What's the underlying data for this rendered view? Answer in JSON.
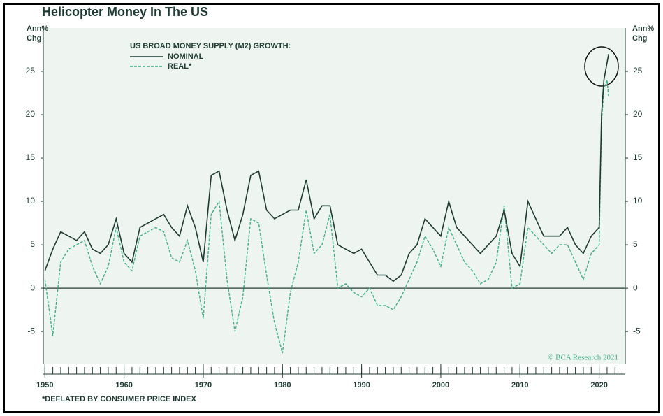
{
  "chart_data": {
    "type": "line",
    "title": "Helicopter Money In The US",
    "ylabel": [
      "Ann%",
      "Chg"
    ],
    "legend_title": "US BROAD MONEY SUPPLY (M2) GROWTH:",
    "footnote": "*DEFLATED BY CONSUMER PRICE INDEX",
    "source": "© BCA Research 2021",
    "legend": "upper left",
    "x": [
      1950,
      1951,
      1952,
      1953,
      1954,
      1955,
      1956,
      1957,
      1958,
      1959,
      1960,
      1961,
      1962,
      1963,
      1964,
      1965,
      1966,
      1967,
      1968,
      1969,
      1970,
      1971,
      1972,
      1973,
      1974,
      1975,
      1976,
      1977,
      1978,
      1979,
      1980,
      1981,
      1982,
      1983,
      1984,
      1985,
      1986,
      1987,
      1988,
      1989,
      1990,
      1991,
      1992,
      1993,
      1994,
      1995,
      1996,
      1997,
      1998,
      1999,
      2000,
      2001,
      2002,
      2003,
      2004,
      2005,
      2006,
      2007,
      2008,
      2009,
      2010,
      2011,
      2012,
      2013,
      2014,
      2015,
      2016,
      2017,
      2018,
      2019,
      2020,
      2020.3,
      2020.6,
      2021,
      2021.2
    ],
    "series": [
      {
        "name": "NOMINAL",
        "color": "#1f3a33",
        "dash": false,
        "values": [
          2,
          4.5,
          6.5,
          6,
          5.5,
          6.5,
          4.5,
          4,
          5,
          8,
          4,
          3,
          7,
          7.5,
          8,
          8.5,
          7,
          6,
          9.5,
          7,
          3,
          13,
          13.5,
          9,
          5.5,
          8.5,
          13,
          13.5,
          9,
          8,
          8.5,
          9,
          9,
          12.5,
          8,
          9.5,
          9.5,
          5,
          4.5,
          4,
          4.5,
          3,
          1.5,
          1.5,
          0.8,
          1.5,
          4,
          5,
          8,
          7,
          6,
          10,
          7,
          6,
          5,
          4,
          5,
          6,
          9,
          4,
          2.5,
          10,
          8,
          6,
          6,
          6,
          7,
          5,
          4,
          6,
          7,
          20,
          24,
          26,
          27
        ]
      },
      {
        "name": "REAL*",
        "color": "#3fae8a",
        "dash": true,
        "values": [
          1,
          -5.5,
          3,
          4.5,
          5,
          5.5,
          2.5,
          0.5,
          2.5,
          7,
          3,
          2,
          6,
          6.5,
          7,
          6.5,
          3.5,
          3,
          5.5,
          2,
          -3.5,
          8.5,
          10,
          1,
          -5,
          -1,
          8,
          7.5,
          1.5,
          -4,
          -7.5,
          -0.5,
          3,
          9,
          4,
          5,
          8.5,
          0,
          0.5,
          -0.5,
          -1,
          0,
          -2,
          -2,
          -2.5,
          -1,
          1,
          3,
          6,
          4.5,
          2.5,
          7,
          5,
          3,
          2,
          0.5,
          1,
          3,
          9.5,
          0,
          0.5,
          7,
          6,
          5,
          4,
          5,
          5,
          3,
          1,
          4,
          5,
          19,
          23,
          24,
          22
        ]
      }
    ],
    "xlim": [
      1949.8,
      2023.3
    ],
    "xticks": [
      1950,
      1960,
      1970,
      1980,
      1990,
      2000,
      2010,
      2020
    ],
    "xminorticks": [
      1950,
      1951,
      1952,
      1953,
      1954,
      1955,
      1956,
      1957,
      1958,
      1959,
      1960,
      1961,
      1962,
      1963,
      1964,
      1965,
      1966,
      1967,
      1968,
      1969,
      1970,
      1971,
      1972,
      1973,
      1974,
      1975,
      1976,
      1977,
      1978,
      1979,
      1980,
      1981,
      1982,
      1983,
      1984,
      1985,
      1986,
      1987,
      1988,
      1989,
      1990,
      1991,
      1992,
      1993,
      1994,
      1995,
      1996,
      1997,
      1998,
      1999,
      2000,
      2001,
      2002,
      2003,
      2004,
      2005,
      2006,
      2007,
      2008,
      2009,
      2010,
      2011,
      2012,
      2013,
      2014,
      2015,
      2016,
      2017,
      2018,
      2019,
      2020,
      2021,
      2022
    ],
    "ylim": [
      -8.7,
      30
    ],
    "yticks": [
      -5,
      0,
      5,
      10,
      15,
      20,
      25
    ],
    "zero_line": true
  }
}
